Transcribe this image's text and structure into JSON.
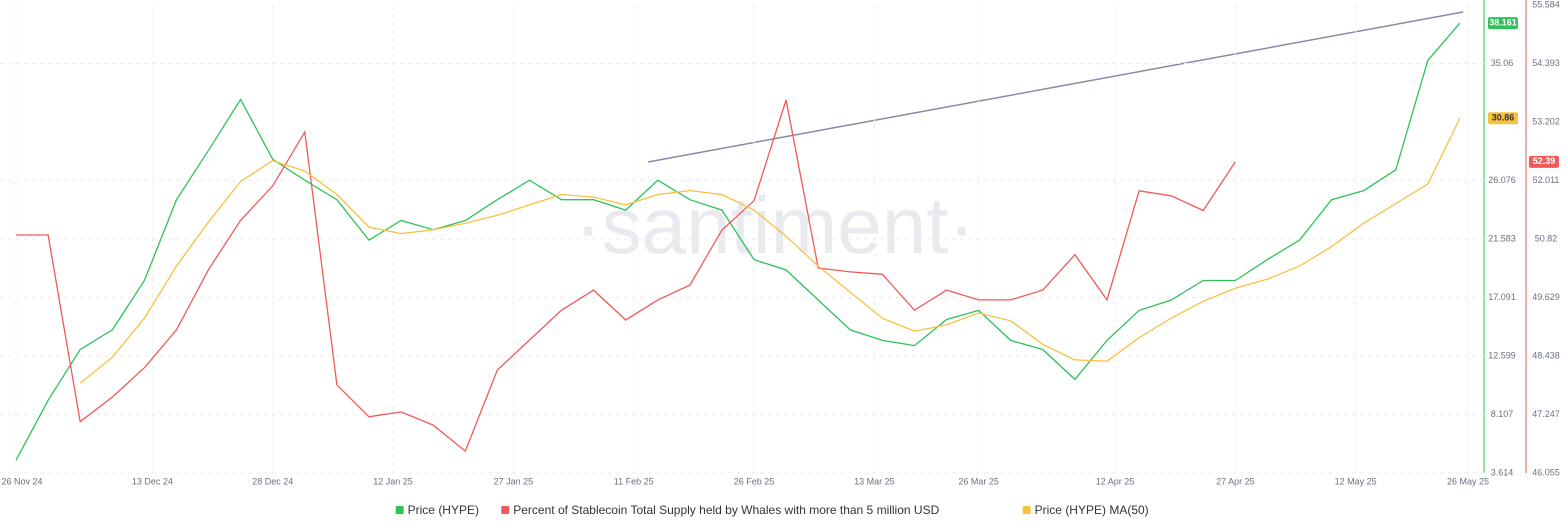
{
  "chart_data": {
    "type": "line",
    "watermark": "·santiment·",
    "x": [
      "2024-11-26",
      "2024-11-30",
      "2024-12-04",
      "2024-12-08",
      "2024-12-12",
      "2024-12-16",
      "2024-12-20",
      "2024-12-24",
      "2024-12-28",
      "2025-01-01",
      "2025-01-05",
      "2025-01-09",
      "2025-01-13",
      "2025-01-17",
      "2025-01-21",
      "2025-01-25",
      "2025-01-29",
      "2025-02-02",
      "2025-02-06",
      "2025-02-10",
      "2025-02-14",
      "2025-02-18",
      "2025-02-22",
      "2025-02-26",
      "2025-03-02",
      "2025-03-06",
      "2025-03-10",
      "2025-03-14",
      "2025-03-18",
      "2025-03-22",
      "2025-03-26",
      "2025-03-30",
      "2025-04-03",
      "2025-04-07",
      "2025-04-11",
      "2025-04-15",
      "2025-04-19",
      "2025-04-23",
      "2025-04-27",
      "2025-05-01",
      "2025-05-05",
      "2025-05-09",
      "2025-05-13",
      "2025-05-17",
      "2025-05-21",
      "2025-05-25"
    ],
    "xlim": [
      "2024-11-24",
      "2025-05-28"
    ],
    "xticks": [
      {
        "value": "2024-11-26",
        "label": "26 Nov 24"
      },
      {
        "value": "2024-12-13",
        "label": "13 Dec 24"
      },
      {
        "value": "2024-12-28",
        "label": "28 Dec 24"
      },
      {
        "value": "2025-01-12",
        "label": "12 Jan 25"
      },
      {
        "value": "2025-01-27",
        "label": "27 Jan 25"
      },
      {
        "value": "2025-02-11",
        "label": "11 Feb 25"
      },
      {
        "value": "2025-02-26",
        "label": "26 Feb 25"
      },
      {
        "value": "2025-03-13",
        "label": "13 Mar 25"
      },
      {
        "value": "2025-03-26",
        "label": "26 Mar 25"
      },
      {
        "value": "2025-04-12",
        "label": "12 Apr 25"
      },
      {
        "value": "2025-04-27",
        "label": "27 Apr 25"
      },
      {
        "value": "2025-05-12",
        "label": "12 May 25"
      },
      {
        "value": "2025-05-26",
        "label": "26 May 25"
      }
    ],
    "ylim": [
      3.614,
      39.552
    ],
    "yticks": [
      3.614,
      8.107,
      12.599,
      17.091,
      21.583,
      26.076,
      35.06
    ],
    "y2lim": [
      46.055,
      55.584
    ],
    "y2ticks": [
      46.055,
      47.247,
      48.438,
      49.629,
      50.82,
      52.011,
      53.202,
      54.393,
      55.584
    ],
    "grid": true,
    "series": [
      {
        "name": "Price (HYPE)",
        "color": "#2ec25a",
        "last_label": "38.161",
        "values": [
          4.6,
          9.2,
          13.1,
          14.6,
          18.4,
          24.6,
          28.4,
          32.3,
          27.7,
          26.1,
          24.6,
          21.5,
          23.0,
          22.3,
          23.0,
          24.6,
          26.1,
          24.6,
          24.6,
          23.8,
          26.1,
          24.6,
          23.8,
          20.0,
          19.2,
          16.9,
          14.6,
          13.8,
          13.4,
          15.4,
          16.1,
          13.8,
          13.1,
          10.8,
          13.8,
          16.1,
          16.9,
          18.4,
          18.4,
          20.0,
          21.5,
          24.6,
          25.3,
          26.9,
          35.3,
          38.161
        ]
      },
      {
        "name": "Percent of Stablecoin Total Supply held by Whales with more than 5 million USD",
        "color": "#ef5a5a",
        "axis": "y2",
        "last_label": "52.39",
        "values": [
          50.9,
          50.9,
          47.1,
          47.6,
          48.2,
          48.97,
          50.2,
          51.2,
          51.9,
          53.0,
          47.85,
          47.2,
          47.3,
          47.03,
          46.5,
          48.15,
          48.76,
          49.37,
          49.78,
          49.17,
          49.58,
          49.88,
          51.0,
          51.6,
          53.65,
          50.23,
          50.15,
          50.1,
          49.37,
          49.78,
          49.58,
          49.58,
          49.78,
          50.5,
          49.58,
          51.8,
          51.7,
          51.4,
          52.39,
          null,
          null,
          null,
          null,
          null,
          null,
          null
        ]
      },
      {
        "name": "Price (HYPE) MA(50)",
        "color": "#f5c242",
        "last_label": "30.86",
        "values": [
          null,
          null,
          10.5,
          12.5,
          15.5,
          19.5,
          22.9,
          26.0,
          27.6,
          26.8,
          25.0,
          22.5,
          22.0,
          22.3,
          22.8,
          23.4,
          24.2,
          25.0,
          24.8,
          24.2,
          25.0,
          25.3,
          25.0,
          23.8,
          21.8,
          19.5,
          17.5,
          15.5,
          14.5,
          15.0,
          15.9,
          15.3,
          13.5,
          12.3,
          12.2,
          14.0,
          15.5,
          16.8,
          17.8,
          18.5,
          19.5,
          21.0,
          22.8,
          24.3,
          25.8,
          30.86
        ]
      }
    ]
  }
}
